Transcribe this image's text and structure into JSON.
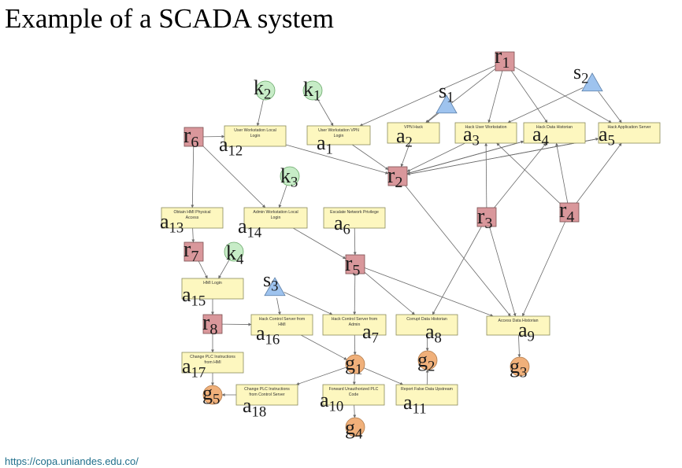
{
  "title": "Example of a SCADA system",
  "footer": "https://copa.uniandes.edu.co/",
  "colors": {
    "action_fill": "#fdf7bf",
    "action_stroke": "#8a8a5c",
    "resource_fill": "#d9979b",
    "resource_stroke": "#7a5051",
    "knowledge_fill": "#c7ecc7",
    "knowledge_stroke": "#6aa86a",
    "skill_fill": "#9ec3ee",
    "skill_stroke": "#5c7fa8",
    "goal_fill": "#f0b07a",
    "goal_stroke": "#b07a4a",
    "edge": "#6a6a6a"
  },
  "actions": [
    {
      "id": "a1",
      "base": "a",
      "sub": "1",
      "text": [
        "User Workstation VPN",
        "Login"
      ]
    },
    {
      "id": "a2",
      "base": "a",
      "sub": "2",
      "text": [
        "VPN Hack"
      ]
    },
    {
      "id": "a3",
      "base": "a",
      "sub": "3",
      "text": [
        "Hack User Workstation"
      ]
    },
    {
      "id": "a4",
      "base": "a",
      "sub": "4",
      "text": [
        "Hack Data Historian"
      ]
    },
    {
      "id": "a5",
      "base": "a",
      "sub": "5",
      "text": [
        "Hack Application Server"
      ]
    },
    {
      "id": "a6",
      "base": "a",
      "sub": "6",
      "text": [
        "Escalate Network Privilege"
      ]
    },
    {
      "id": "a7",
      "base": "a",
      "sub": "7",
      "text": [
        "Hack Control Server from",
        "Admin"
      ]
    },
    {
      "id": "a8",
      "base": "a",
      "sub": "8",
      "text": [
        "Corrupt Data Historian"
      ]
    },
    {
      "id": "a9",
      "base": "a",
      "sub": "9",
      "text": [
        "Access Data Historian"
      ]
    },
    {
      "id": "a10",
      "base": "a",
      "sub": "10",
      "text": [
        "Forward Unauthorized PLC",
        "Code"
      ]
    },
    {
      "id": "a11",
      "base": "a",
      "sub": "11",
      "text": [
        "Report False Data Upstream"
      ]
    },
    {
      "id": "a12",
      "base": "a",
      "sub": "12",
      "text": [
        "User Workstation Local",
        "Login"
      ]
    },
    {
      "id": "a13",
      "base": "a",
      "sub": "13",
      "text": [
        "Obtain HMI Physical",
        "Access"
      ]
    },
    {
      "id": "a14",
      "base": "a",
      "sub": "14",
      "text": [
        "Admin Workstation Local",
        "Login"
      ]
    },
    {
      "id": "a15",
      "base": "a",
      "sub": "15",
      "text": [
        "HMI Login"
      ]
    },
    {
      "id": "a16",
      "base": "a",
      "sub": "16",
      "text": [
        "Hack Control Server from",
        "HMI"
      ]
    },
    {
      "id": "a17",
      "base": "a",
      "sub": "17",
      "text": [
        "Change PLC Instructions",
        "from HMI"
      ]
    },
    {
      "id": "a18",
      "base": "a",
      "sub": "18",
      "text": [
        "Change PLC Instructions",
        "from Control Server"
      ]
    }
  ],
  "resources": [
    {
      "id": "r1",
      "base": "r",
      "sub": "1"
    },
    {
      "id": "r2",
      "base": "r",
      "sub": "2"
    },
    {
      "id": "r3",
      "base": "r",
      "sub": "3"
    },
    {
      "id": "r4",
      "base": "r",
      "sub": "4"
    },
    {
      "id": "r5",
      "base": "r",
      "sub": "5"
    },
    {
      "id": "r6",
      "base": "r",
      "sub": "6"
    },
    {
      "id": "r7",
      "base": "r",
      "sub": "7"
    },
    {
      "id": "r8",
      "base": "r",
      "sub": "8"
    }
  ],
  "knowledge": [
    {
      "id": "k1",
      "base": "k",
      "sub": "1"
    },
    {
      "id": "k2",
      "base": "k",
      "sub": "2"
    },
    {
      "id": "k3",
      "base": "k",
      "sub": "3"
    },
    {
      "id": "k4",
      "base": "k",
      "sub": "4"
    }
  ],
  "skills": [
    {
      "id": "s1",
      "base": "s",
      "sub": "1"
    },
    {
      "id": "s2",
      "base": "s",
      "sub": "2"
    },
    {
      "id": "s3",
      "base": "s",
      "sub": "3"
    }
  ],
  "goals": [
    {
      "id": "g1",
      "base": "g",
      "sub": "1"
    },
    {
      "id": "g2",
      "base": "g",
      "sub": "2"
    },
    {
      "id": "g3",
      "base": "g",
      "sub": "3"
    },
    {
      "id": "g4",
      "base": "g",
      "sub": "4"
    },
    {
      "id": "g5",
      "base": "g",
      "sub": "5"
    }
  ],
  "edges": [
    [
      "k2",
      "a12"
    ],
    [
      "k1",
      "a1"
    ],
    [
      "r6",
      "a12"
    ],
    [
      "r6",
      "a13"
    ],
    [
      "r6",
      "a14"
    ],
    [
      "a12",
      "r2"
    ],
    [
      "a1",
      "r2"
    ],
    [
      "a2",
      "r2"
    ],
    [
      "a3",
      "r2"
    ],
    [
      "a4",
      "r2"
    ],
    [
      "a5",
      "r2"
    ],
    [
      "r1",
      "a2"
    ],
    [
      "r1",
      "a3"
    ],
    [
      "r1",
      "a4"
    ],
    [
      "r1",
      "a5"
    ],
    [
      "r1",
      "a1"
    ],
    [
      "s1",
      "a2"
    ],
    [
      "s2",
      "a3"
    ],
    [
      "s2",
      "a5"
    ],
    [
      "r2",
      "a4"
    ],
    [
      "r2",
      "a5"
    ],
    [
      "r2",
      "a9"
    ],
    [
      "k3",
      "a14"
    ],
    [
      "a13",
      "r7"
    ],
    [
      "a14",
      "r5"
    ],
    [
      "a6",
      "r5"
    ],
    [
      "r3",
      "a3"
    ],
    [
      "r3",
      "a4"
    ],
    [
      "r3",
      "a8"
    ],
    [
      "r3",
      "a9"
    ],
    [
      "r4",
      "a3"
    ],
    [
      "r4",
      "a4"
    ],
    [
      "r4",
      "a5"
    ],
    [
      "r4",
      "a9"
    ],
    [
      "r7",
      "a15"
    ],
    [
      "k4",
      "a15"
    ],
    [
      "a15",
      "r8"
    ],
    [
      "s3",
      "a16"
    ],
    [
      "s3",
      "a7"
    ],
    [
      "r5",
      "a7"
    ],
    [
      "r5",
      "a8"
    ],
    [
      "r5",
      "a9"
    ],
    [
      "r8",
      "a16"
    ],
    [
      "r8",
      "a17"
    ],
    [
      "a16",
      "g1"
    ],
    [
      "a7",
      "g1"
    ],
    [
      "g1",
      "a18"
    ],
    [
      "g1",
      "a10"
    ],
    [
      "g1",
      "a11"
    ],
    [
      "a17",
      "g5"
    ],
    [
      "a18",
      "g5"
    ],
    [
      "a10",
      "g4"
    ],
    [
      "a11",
      "g2"
    ],
    [
      "a8",
      "g2"
    ],
    [
      "a9",
      "g3"
    ]
  ]
}
